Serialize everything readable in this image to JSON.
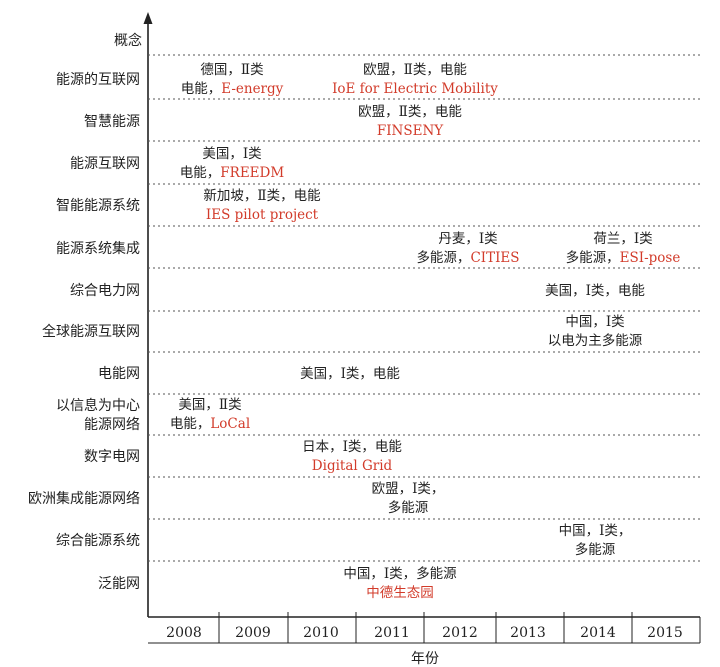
{
  "chart_data": {
    "type": "timeline",
    "title": "",
    "xlabel": "年份",
    "ylabel": "概念",
    "years": [
      "2008",
      "2009",
      "2010",
      "2011",
      "2012",
      "2013",
      "2014",
      "2015"
    ],
    "categories": [
      "能源的互联网",
      "智慧能源",
      "能源互联网",
      "智能能源系统",
      "能源系统集成",
      "综合电力网",
      "全球能源互联网",
      "电能网",
      "以信息为中心\n能源网络",
      "数字电网",
      "欧洲集成能源网络",
      "综合能源系统",
      "泛能网"
    ],
    "entries": [
      {
        "row": 0,
        "year": 2008,
        "lines": [
          [
            "德国，Ⅱ类",
            ""
          ],
          [
            "电能，",
            "E-energy"
          ]
        ]
      },
      {
        "row": 0,
        "year": 2011,
        "lines": [
          [
            "欧盟，Ⅱ类，电能",
            ""
          ],
          [
            "",
            "IoE for Electric Mobility"
          ]
        ]
      },
      {
        "row": 1,
        "year": 2011,
        "lines": [
          [
            "欧盟，Ⅱ类，电能",
            ""
          ],
          [
            "",
            "FINSENY"
          ]
        ]
      },
      {
        "row": 2,
        "year": 2008,
        "lines": [
          [
            "美国，Ⅰ类",
            ""
          ],
          [
            "电能，",
            "FREEDM"
          ]
        ]
      },
      {
        "row": 3,
        "year": 2008,
        "lines": [
          [
            "新加坡，Ⅱ类，电能",
            ""
          ],
          [
            "",
            "IES pilot project"
          ]
        ]
      },
      {
        "row": 4,
        "year": 2012,
        "lines": [
          [
            "丹麦，Ⅰ类",
            ""
          ],
          [
            "多能源，",
            "CITIES"
          ]
        ]
      },
      {
        "row": 4,
        "year": 2014,
        "lines": [
          [
            "荷兰，Ⅰ类",
            ""
          ],
          [
            "多能源，",
            "ESI-pose"
          ]
        ]
      },
      {
        "row": 5,
        "year": 2014,
        "lines": [
          [
            "美国，Ⅰ类，电能",
            ""
          ]
        ]
      },
      {
        "row": 6,
        "year": 2014,
        "lines": [
          [
            "中国，Ⅰ类",
            ""
          ],
          [
            "以电为主多能源",
            ""
          ]
        ]
      },
      {
        "row": 7,
        "year": 2010,
        "lines": [
          [
            "美国，Ⅰ类，电能",
            ""
          ]
        ]
      },
      {
        "row": 8,
        "year": 2008,
        "lines": [
          [
            "美国，Ⅱ类",
            ""
          ],
          [
            "电能，",
            "LoCal"
          ]
        ]
      },
      {
        "row": 9,
        "year": 2010,
        "lines": [
          [
            "日本，Ⅰ类，电能",
            ""
          ],
          [
            "",
            "Digital Grid"
          ]
        ]
      },
      {
        "row": 10,
        "year": 2011,
        "lines": [
          [
            "欧盟，Ⅰ类，",
            ""
          ],
          [
            "多能源",
            ""
          ]
        ]
      },
      {
        "row": 11,
        "year": 2014,
        "lines": [
          [
            "中国，Ⅰ类，",
            ""
          ],
          [
            "多能源",
            ""
          ]
        ]
      },
      {
        "row": 12,
        "year": 2011,
        "lines": [
          [
            "中国，Ⅰ类，多能源",
            ""
          ],
          [
            "",
            "中德生态园"
          ]
        ]
      }
    ],
    "grid": "dotted-horizontal",
    "colors": {
      "text": "#222222",
      "project": "#d23b2a",
      "axis": "#222222",
      "grid": "#555555"
    }
  }
}
